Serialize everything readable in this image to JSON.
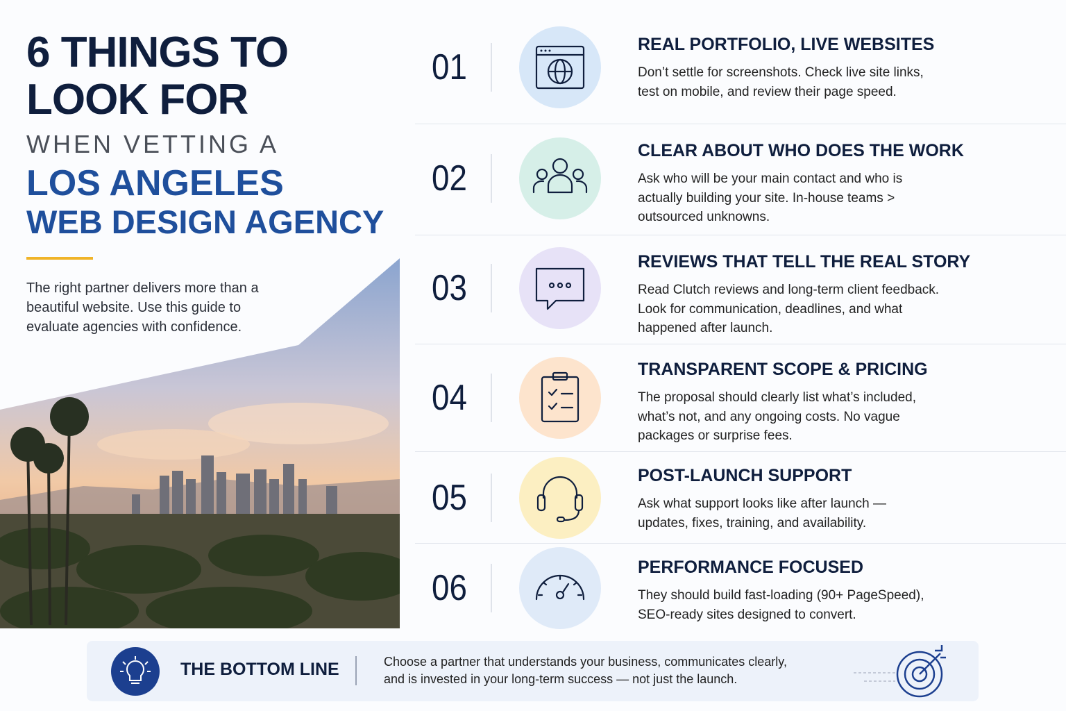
{
  "header": {
    "title_lines": [
      "6 THINGS TO",
      "LOOK FOR"
    ],
    "subtitle": "WHEN VETTING A",
    "highlight_lines": [
      "LOS ANGELES",
      "WEB DESIGN AGENCY"
    ],
    "intro_lines": [
      "The right partner delivers more than a",
      "beautiful website. Use this guide to",
      "evaluate agencies with confidence."
    ]
  },
  "items": [
    {
      "number": "01",
      "heading": "REAL PORTFOLIO, LIVE WEBSITES",
      "lines": [
        "Don’t settle for screenshots. Check live site links,",
        "test on mobile, and review their page speed."
      ]
    },
    {
      "number": "02",
      "heading": "CLEAR ABOUT WHO DOES THE WORK",
      "lines": [
        "Ask who will be your main contact and who is",
        "actually building your site. In-house teams >",
        "outsourced unknowns."
      ]
    },
    {
      "number": "03",
      "heading": "REVIEWS THAT TELL THE REAL STORY",
      "lines": [
        "Read Clutch reviews and long-term client feedback.",
        "Look for communication, deadlines, and what",
        "happened after launch."
      ]
    },
    {
      "number": "04",
      "heading": "TRANSPARENT SCOPE & PRICING",
      "lines": [
        "The proposal should clearly list what’s included,",
        "what’s not, and any ongoing costs. No vague",
        "packages or surprise fees."
      ]
    },
    {
      "number": "05",
      "heading": "POST-LAUNCH SUPPORT",
      "lines": [
        "Ask what support looks like after launch —",
        "updates, fixes, training, and availability."
      ]
    },
    {
      "number": "06",
      "heading": "PERFORMANCE FOCUSED",
      "lines": [
        "They should build fast-loading (90+ PageSpeed),",
        "SEO-ready sites designed to convert."
      ]
    }
  ],
  "bottom": {
    "title": "THE BOTTOM LINE",
    "lines": [
      "Choose a partner that understands your business, communicates clearly,",
      "and is invested in your long-term success — not just the launch."
    ]
  }
}
